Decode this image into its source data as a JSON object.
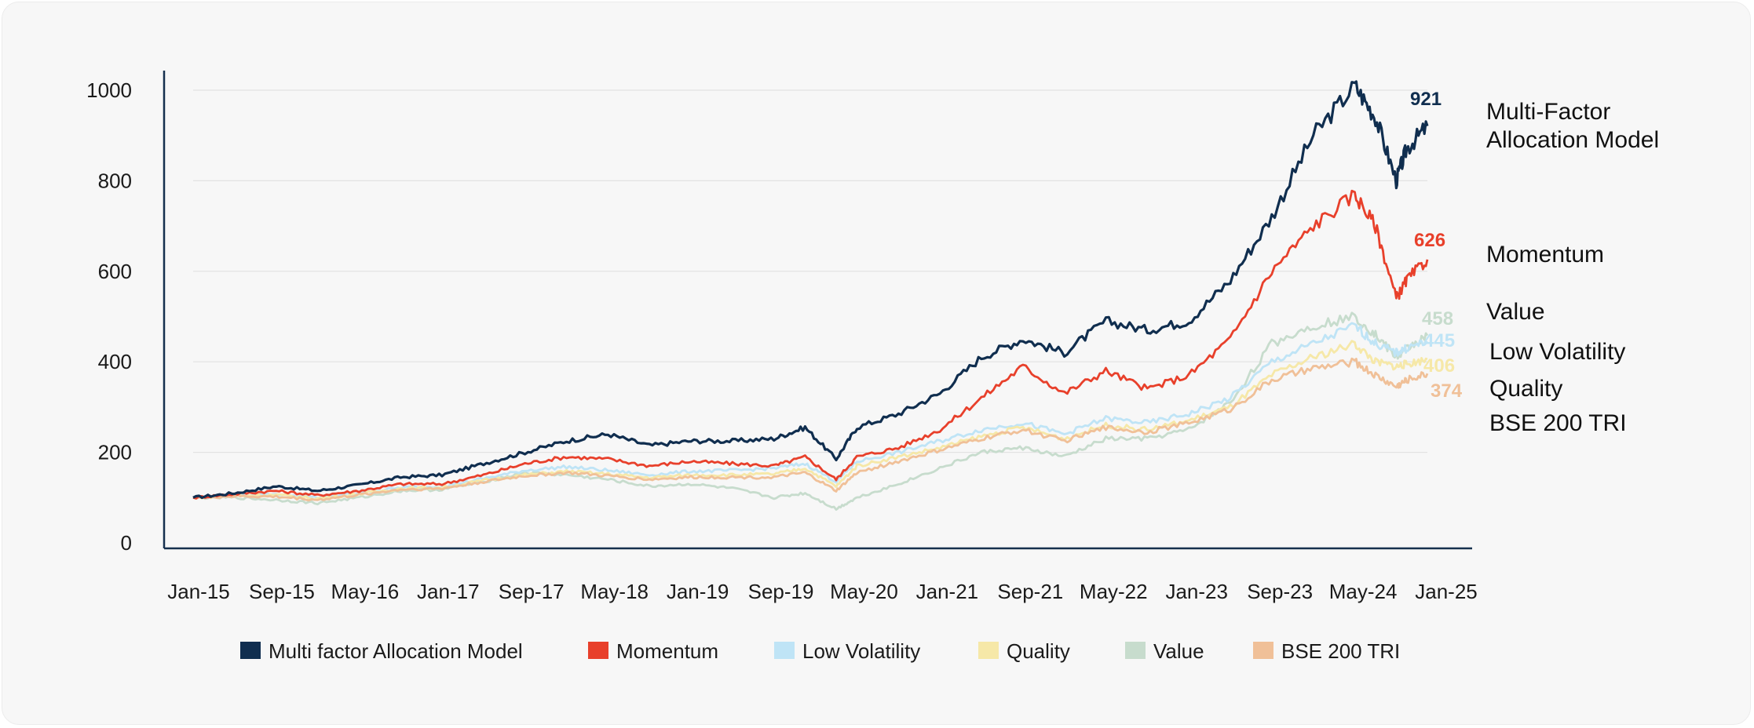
{
  "chart_data": {
    "type": "line",
    "title": "",
    "xlabel": "",
    "ylabel": "",
    "ylim": [
      0,
      1000
    ],
    "yticks": [
      "0",
      "200",
      "400",
      "600",
      "800",
      "1000"
    ],
    "xticks": [
      "Jan-15",
      "Sep-15",
      "May-16",
      "Jan-17",
      "Sep-17",
      "May-18",
      "Jan-19",
      "Sep-19",
      "May-20",
      "Jan-21",
      "Sep-21",
      "May-22",
      "Jan-23",
      "Sep-23",
      "May-24",
      "Jan-25"
    ],
    "grid": true,
    "legend_position": "bottom",
    "x": [
      "Jan-15",
      "May-15",
      "Sep-15",
      "Jan-16",
      "May-16",
      "Sep-16",
      "Jan-17",
      "May-17",
      "Sep-17",
      "Jan-18",
      "May-18",
      "Sep-18",
      "Jan-19",
      "May-19",
      "Sep-19",
      "Dec-19",
      "Mar-20",
      "May-20",
      "Sep-20",
      "Jan-21",
      "May-21",
      "Sep-21",
      "Jan-22",
      "May-22",
      "Sep-22",
      "Jan-23",
      "May-23",
      "Sep-23",
      "Jan-24",
      "May-24",
      "Jul-24",
      "Sep-24",
      "Oct-24",
      "Dec-24"
    ],
    "series": [
      {
        "name": "Multi factor Allocation Model",
        "color": "#102e4f",
        "end_label": "921",
        "values": [
          100,
          110,
          125,
          115,
          128,
          145,
          150,
          175,
          200,
          225,
          240,
          215,
          225,
          225,
          230,
          255,
          185,
          255,
          285,
          330,
          410,
          450,
          420,
          490,
          470,
          490,
          580,
          720,
          900,
          1010,
          940,
          800,
          870,
          921
        ]
      },
      {
        "name": "Momentum",
        "color": "#e8402b",
        "end_label": "626",
        "values": [
          100,
          108,
          115,
          105,
          115,
          130,
          130,
          150,
          175,
          190,
          185,
          170,
          180,
          175,
          170,
          190,
          140,
          190,
          210,
          250,
          320,
          390,
          330,
          380,
          340,
          370,
          450,
          600,
          700,
          770,
          700,
          540,
          580,
          626
        ]
      },
      {
        "name": "Low Volatility",
        "color": "#bfe4f6",
        "end_label": "445",
        "values": [
          100,
          105,
          108,
          100,
          110,
          122,
          125,
          142,
          160,
          168,
          160,
          150,
          158,
          160,
          165,
          175,
          135,
          180,
          200,
          225,
          250,
          265,
          240,
          275,
          265,
          285,
          320,
          400,
          440,
          480,
          440,
          420,
          430,
          445
        ]
      },
      {
        "name": "Quality",
        "color": "#f6e8a8",
        "end_label": "406",
        "values": [
          100,
          104,
          106,
          98,
          108,
          120,
          122,
          138,
          150,
          158,
          152,
          144,
          150,
          150,
          152,
          165,
          125,
          170,
          190,
          210,
          235,
          255,
          230,
          260,
          250,
          270,
          300,
          370,
          410,
          440,
          400,
          390,
          395,
          406
        ]
      },
      {
        "name": "Value",
        "color": "#c7dccd",
        "end_label": "458",
        "values": [
          100,
          100,
          95,
          88,
          100,
          115,
          118,
          135,
          155,
          150,
          140,
          125,
          130,
          120,
          100,
          110,
          75,
          100,
          130,
          165,
          200,
          210,
          190,
          230,
          230,
          250,
          310,
          440,
          480,
          500,
          460,
          410,
          430,
          458
        ]
      },
      {
        "name": "BSE 200 TRI",
        "color": "#f0c098",
        "end_label": "374",
        "values": [
          100,
          103,
          102,
          95,
          106,
          118,
          120,
          135,
          148,
          155,
          148,
          140,
          145,
          145,
          145,
          155,
          115,
          155,
          180,
          205,
          230,
          250,
          225,
          255,
          245,
          265,
          295,
          360,
          385,
          400,
          370,
          345,
          360,
          374
        ]
      }
    ]
  },
  "right_labels": [
    {
      "lines": [
        "Multi-Factor",
        "Allocation Model"
      ]
    },
    {
      "lines": [
        "Momentum"
      ]
    },
    {
      "lines": [
        "Value"
      ]
    },
    {
      "lines": [
        "Low Volatility"
      ]
    },
    {
      "lines": [
        "Quality"
      ]
    },
    {
      "lines": [
        "BSE 200 TRI"
      ]
    }
  ],
  "legend": [
    {
      "label": "Multi factor Allocation Model",
      "color": "#102e4f"
    },
    {
      "label": "Momentum",
      "color": "#e8402b"
    },
    {
      "label": "Low Volatility",
      "color": "#bfe4f6"
    },
    {
      "label": "Quality",
      "color": "#f6e8a8"
    },
    {
      "label": "Value",
      "color": "#c7dccd"
    },
    {
      "label": "BSE 200 TRI",
      "color": "#f0c098"
    }
  ]
}
